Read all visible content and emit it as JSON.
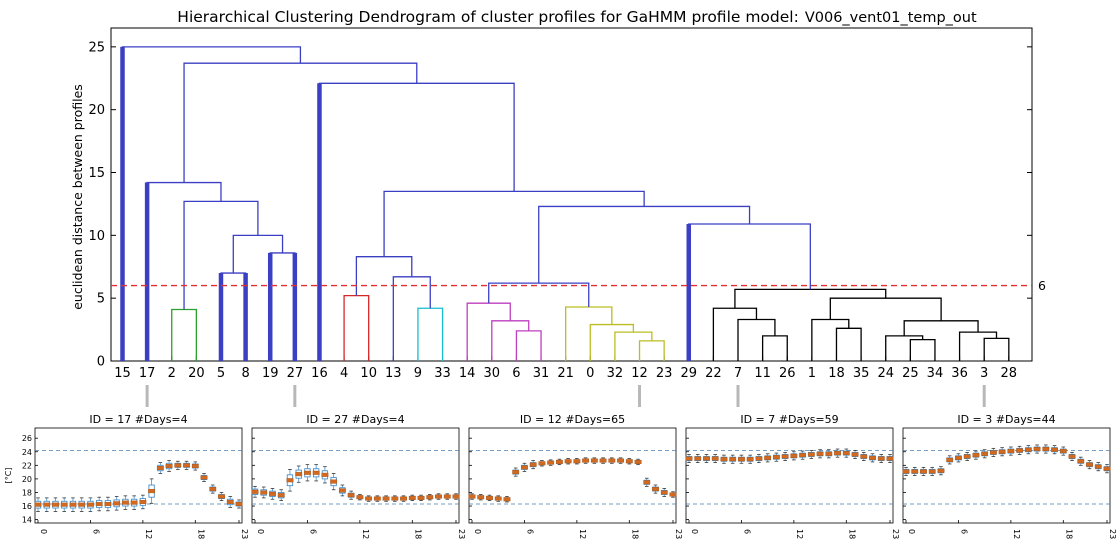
{
  "chart_data": [
    {
      "type": "dendrogram",
      "title": "Hierarchical Clustering Dendrogram of cluster profiles for GaHMM profile model:",
      "model_name": "V006_vent01_temp_out",
      "ylabel": "euclidean distance between profiles",
      "ylim": [
        0,
        26.5
      ],
      "yticks": [
        0,
        5,
        10,
        15,
        20,
        25
      ],
      "leaf_labels": [
        "15",
        "17",
        "2",
        "20",
        "5",
        "8",
        "19",
        "27",
        "16",
        "4",
        "10",
        "13",
        "9",
        "33",
        "14",
        "30",
        "6",
        "31",
        "21",
        "0",
        "32",
        "12",
        "23",
        "29",
        "22",
        "7",
        "11",
        "26",
        "1",
        "18",
        "35",
        "24",
        "25",
        "34",
        "36",
        "3",
        "28"
      ],
      "threshold": {
        "value": 6,
        "label": "6",
        "color": "#e03030"
      },
      "colors": {
        "blue": "#3b3fc4",
        "green": "#2ca02c",
        "red": "#d62728",
        "cyan": "#17becf",
        "magenta": "#bf3fbf",
        "olive": "#bcbd22",
        "black": "#000000"
      },
      "merges": [
        {
          "l": "L2",
          "r": "L3",
          "h": 4.1,
          "c": "green"
        },
        {
          "l": "L4",
          "r": "L5",
          "h": 7.0,
          "c": "blue",
          "thick": true
        },
        {
          "l": "L6",
          "r": "L7",
          "h": 8.6,
          "c": "blue",
          "thick": true
        },
        {
          "l": "M1",
          "r": "M2",
          "h": 10.0,
          "c": "blue"
        },
        {
          "l": "M0",
          "r": "M3",
          "h": 12.7,
          "c": "blue"
        },
        {
          "l": "L1",
          "r": "M4",
          "h": 14.2,
          "c": "blue",
          "thick": true
        },
        {
          "l": "L9",
          "r": "L10",
          "h": 5.2,
          "c": "red"
        },
        {
          "l": "L12",
          "r": "L13",
          "h": 4.2,
          "c": "cyan"
        },
        {
          "l": "L11",
          "r": "M7",
          "h": 6.7,
          "c": "blue"
        },
        {
          "l": "M6",
          "r": "M8",
          "h": 8.3,
          "c": "blue"
        },
        {
          "l": "L16",
          "r": "L17",
          "h": 2.4,
          "c": "magenta"
        },
        {
          "l": "L15",
          "r": "M10",
          "h": 3.2,
          "c": "magenta"
        },
        {
          "l": "L14",
          "r": "M11",
          "h": 4.6,
          "c": "magenta"
        },
        {
          "l": "L21",
          "r": "L22",
          "h": 1.6,
          "c": "olive"
        },
        {
          "l": "L20",
          "r": "M13",
          "h": 2.3,
          "c": "olive"
        },
        {
          "l": "L19",
          "r": "M14",
          "h": 2.9,
          "c": "olive"
        },
        {
          "l": "L18",
          "r": "M15",
          "h": 4.3,
          "c": "olive"
        },
        {
          "l": "M12",
          "r": "M16",
          "h": 6.2,
          "c": "blue"
        },
        {
          "l": "L26",
          "r": "L27",
          "h": 2.0,
          "c": "black"
        },
        {
          "l": "L25",
          "r": "M18",
          "h": 3.3,
          "c": "black"
        },
        {
          "l": "L24",
          "r": "M19",
          "h": 4.2,
          "c": "black"
        },
        {
          "l": "L29",
          "r": "L30",
          "h": 2.6,
          "c": "black"
        },
        {
          "l": "L28",
          "r": "M21",
          "h": 3.3,
          "c": "black"
        },
        {
          "l": "L32",
          "r": "L33",
          "h": 1.7,
          "c": "black"
        },
        {
          "l": "L31",
          "r": "M23",
          "h": 2.0,
          "c": "black"
        },
        {
          "l": "L35",
          "r": "L36",
          "h": 1.8,
          "c": "black"
        },
        {
          "l": "L34",
          "r": "M25",
          "h": 2.3,
          "c": "black"
        },
        {
          "l": "M24",
          "r": "M26",
          "h": 3.2,
          "c": "black"
        },
        {
          "l": "M22",
          "r": "M27",
          "h": 5.0,
          "c": "black"
        },
        {
          "l": "M20",
          "r": "M28",
          "h": 5.7,
          "c": "black"
        },
        {
          "l": "L23",
          "r": "M29",
          "h": 10.9,
          "c": "blue",
          "thick": true
        },
        {
          "l": "M17",
          "r": "M30",
          "h": 12.3,
          "c": "blue"
        },
        {
          "l": "M9",
          "r": "M31",
          "h": 13.5,
          "c": "blue"
        },
        {
          "l": "L8",
          "r": "M32",
          "h": 22.1,
          "c": "blue",
          "thick": true
        },
        {
          "l": "M5",
          "r": "M33",
          "h": 23.7,
          "c": "blue"
        },
        {
          "l": "L0",
          "r": "M34",
          "h": 25.0,
          "c": "blue",
          "thick": true
        }
      ]
    },
    {
      "type": "boxplot",
      "title": "ID = 17 #Days=4",
      "leaf": "17",
      "ylabel": "[°C]",
      "ylim": [
        13.5,
        27.5
      ],
      "yticks": [
        14,
        16,
        18,
        20,
        22,
        24,
        26
      ],
      "xticks": [
        0,
        6,
        12,
        18,
        23
      ],
      "hlines": [
        16.3,
        24.2
      ],
      "median": [
        16.2,
        16.2,
        16.2,
        16.2,
        16.2,
        16.2,
        16.2,
        16.3,
        16.3,
        16.4,
        16.5,
        16.5,
        16.6,
        18.2,
        21.6,
        21.9,
        22.0,
        22.0,
        21.9,
        20.2,
        18.5,
        17.4,
        16.6,
        16.3
      ],
      "spread": [
        0.5,
        0.5,
        0.5,
        0.5,
        0.5,
        0.5,
        0.5,
        0.5,
        0.5,
        0.5,
        0.5,
        0.5,
        0.5,
        0.9,
        0.4,
        0.4,
        0.3,
        0.3,
        0.3,
        0.3,
        0.3,
        0.3,
        0.4,
        0.3
      ]
    },
    {
      "type": "boxplot",
      "title": "ID = 27 #Days=4",
      "leaf": "27",
      "ylim": [
        13.5,
        27.5
      ],
      "yticks": [
        14,
        16,
        18,
        20,
        22,
        24,
        26
      ],
      "xticks": [
        0,
        6,
        12,
        18,
        23
      ],
      "hlines": [
        16.3,
        24.2
      ],
      "median": [
        18.1,
        18.0,
        17.8,
        17.6,
        19.8,
        20.7,
        20.9,
        20.9,
        20.6,
        19.6,
        18.3,
        17.6,
        17.3,
        17.1,
        17.1,
        17.1,
        17.1,
        17.1,
        17.2,
        17.2,
        17.3,
        17.4,
        17.4,
        17.4
      ],
      "spread": [
        0.4,
        0.4,
        0.4,
        0.4,
        0.8,
        0.6,
        0.6,
        0.6,
        0.6,
        0.6,
        0.4,
        0.3,
        0.2,
        0.2,
        0.2,
        0.2,
        0.2,
        0.2,
        0.2,
        0.2,
        0.2,
        0.2,
        0.2,
        0.2
      ]
    },
    {
      "type": "boxplot",
      "title": "ID = 12 #Days=65",
      "leaf": "12",
      "ylim": [
        13.5,
        27.5
      ],
      "yticks": [
        14,
        16,
        18,
        20,
        22,
        24,
        26
      ],
      "xticks": [
        0,
        6,
        12,
        18,
        23
      ],
      "hlines": [
        16.3,
        24.2
      ],
      "median": [
        17.4,
        17.3,
        17.2,
        17.1,
        17.0,
        21.0,
        21.7,
        22.1,
        22.3,
        22.4,
        22.5,
        22.6,
        22.6,
        22.7,
        22.7,
        22.7,
        22.7,
        22.7,
        22.6,
        22.5,
        19.5,
        18.5,
        18.0,
        17.7
      ],
      "spread": [
        0.2,
        0.2,
        0.2,
        0.2,
        0.2,
        0.3,
        0.3,
        0.3,
        0.2,
        0.2,
        0.2,
        0.2,
        0.2,
        0.2,
        0.2,
        0.2,
        0.2,
        0.2,
        0.2,
        0.2,
        0.3,
        0.3,
        0.3,
        0.2
      ]
    },
    {
      "type": "boxplot",
      "title": "ID = 7 #Days=59",
      "leaf": "7",
      "ylim": [
        13.5,
        27.5
      ],
      "yticks": [
        14,
        16,
        18,
        20,
        22,
        24,
        26
      ],
      "xticks": [
        0,
        6,
        12,
        18,
        23
      ],
      "hlines": [
        16.3,
        24.2
      ],
      "median": [
        23.0,
        23.0,
        23.0,
        23.0,
        22.9,
        22.9,
        22.9,
        22.9,
        23.0,
        23.1,
        23.2,
        23.3,
        23.4,
        23.5,
        23.6,
        23.7,
        23.7,
        23.8,
        23.8,
        23.6,
        23.3,
        23.1,
        23.0,
        23.0
      ],
      "spread": [
        0.3,
        0.3,
        0.3,
        0.3,
        0.3,
        0.3,
        0.3,
        0.3,
        0.3,
        0.3,
        0.3,
        0.3,
        0.3,
        0.3,
        0.3,
        0.3,
        0.3,
        0.3,
        0.3,
        0.3,
        0.3,
        0.3,
        0.3,
        0.3
      ]
    },
    {
      "type": "boxplot",
      "title": "ID = 3 #Days=44",
      "leaf": "3",
      "ylim": [
        13.5,
        27.5
      ],
      "yticks": [
        14,
        16,
        18,
        20,
        22,
        24,
        26
      ],
      "xticks": [
        0,
        6,
        12,
        18,
        23
      ],
      "hlines": [
        16.3,
        24.2
      ],
      "median": [
        21.1,
        21.1,
        21.1,
        21.1,
        21.2,
        22.8,
        23.1,
        23.3,
        23.5,
        23.7,
        23.9,
        24.0,
        24.1,
        24.2,
        24.3,
        24.4,
        24.4,
        24.3,
        24.1,
        23.3,
        22.6,
        22.1,
        21.8,
        21.5
      ],
      "spread": [
        0.3,
        0.3,
        0.3,
        0.3,
        0.3,
        0.3,
        0.3,
        0.3,
        0.3,
        0.3,
        0.3,
        0.3,
        0.3,
        0.3,
        0.3,
        0.3,
        0.3,
        0.3,
        0.3,
        0.3,
        0.3,
        0.3,
        0.3,
        0.3
      ]
    }
  ]
}
